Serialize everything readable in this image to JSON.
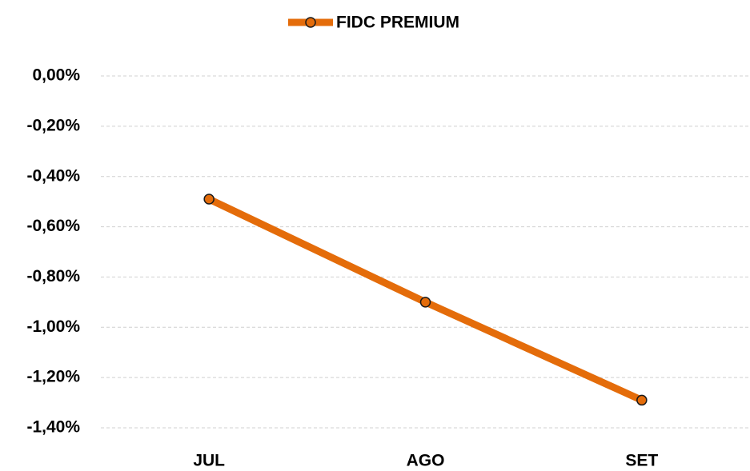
{
  "chart_data": {
    "type": "line",
    "categories": [
      "JUL",
      "AGO",
      "SET"
    ],
    "series": [
      {
        "name": "FIDC PREMIUM",
        "color": "#e46c0a",
        "values": [
          -0.49,
          -0.9,
          -1.29
        ]
      }
    ],
    "ylim": [
      -1.4,
      0
    ],
    "yticks": [
      {
        "value": 0,
        "label": "0,00%"
      },
      {
        "value": -0.2,
        "label": "-0,20%"
      },
      {
        "value": -0.4,
        "label": "-0,40%"
      },
      {
        "value": -0.6,
        "label": "-0,60%"
      },
      {
        "value": -0.8,
        "label": "-0,80%"
      },
      {
        "value": -1.0,
        "label": "-1,00%"
      },
      {
        "value": -1.2,
        "label": "-1,20%"
      },
      {
        "value": -1.4,
        "label": "-1,40%"
      }
    ],
    "grid": true,
    "legend": "top"
  }
}
